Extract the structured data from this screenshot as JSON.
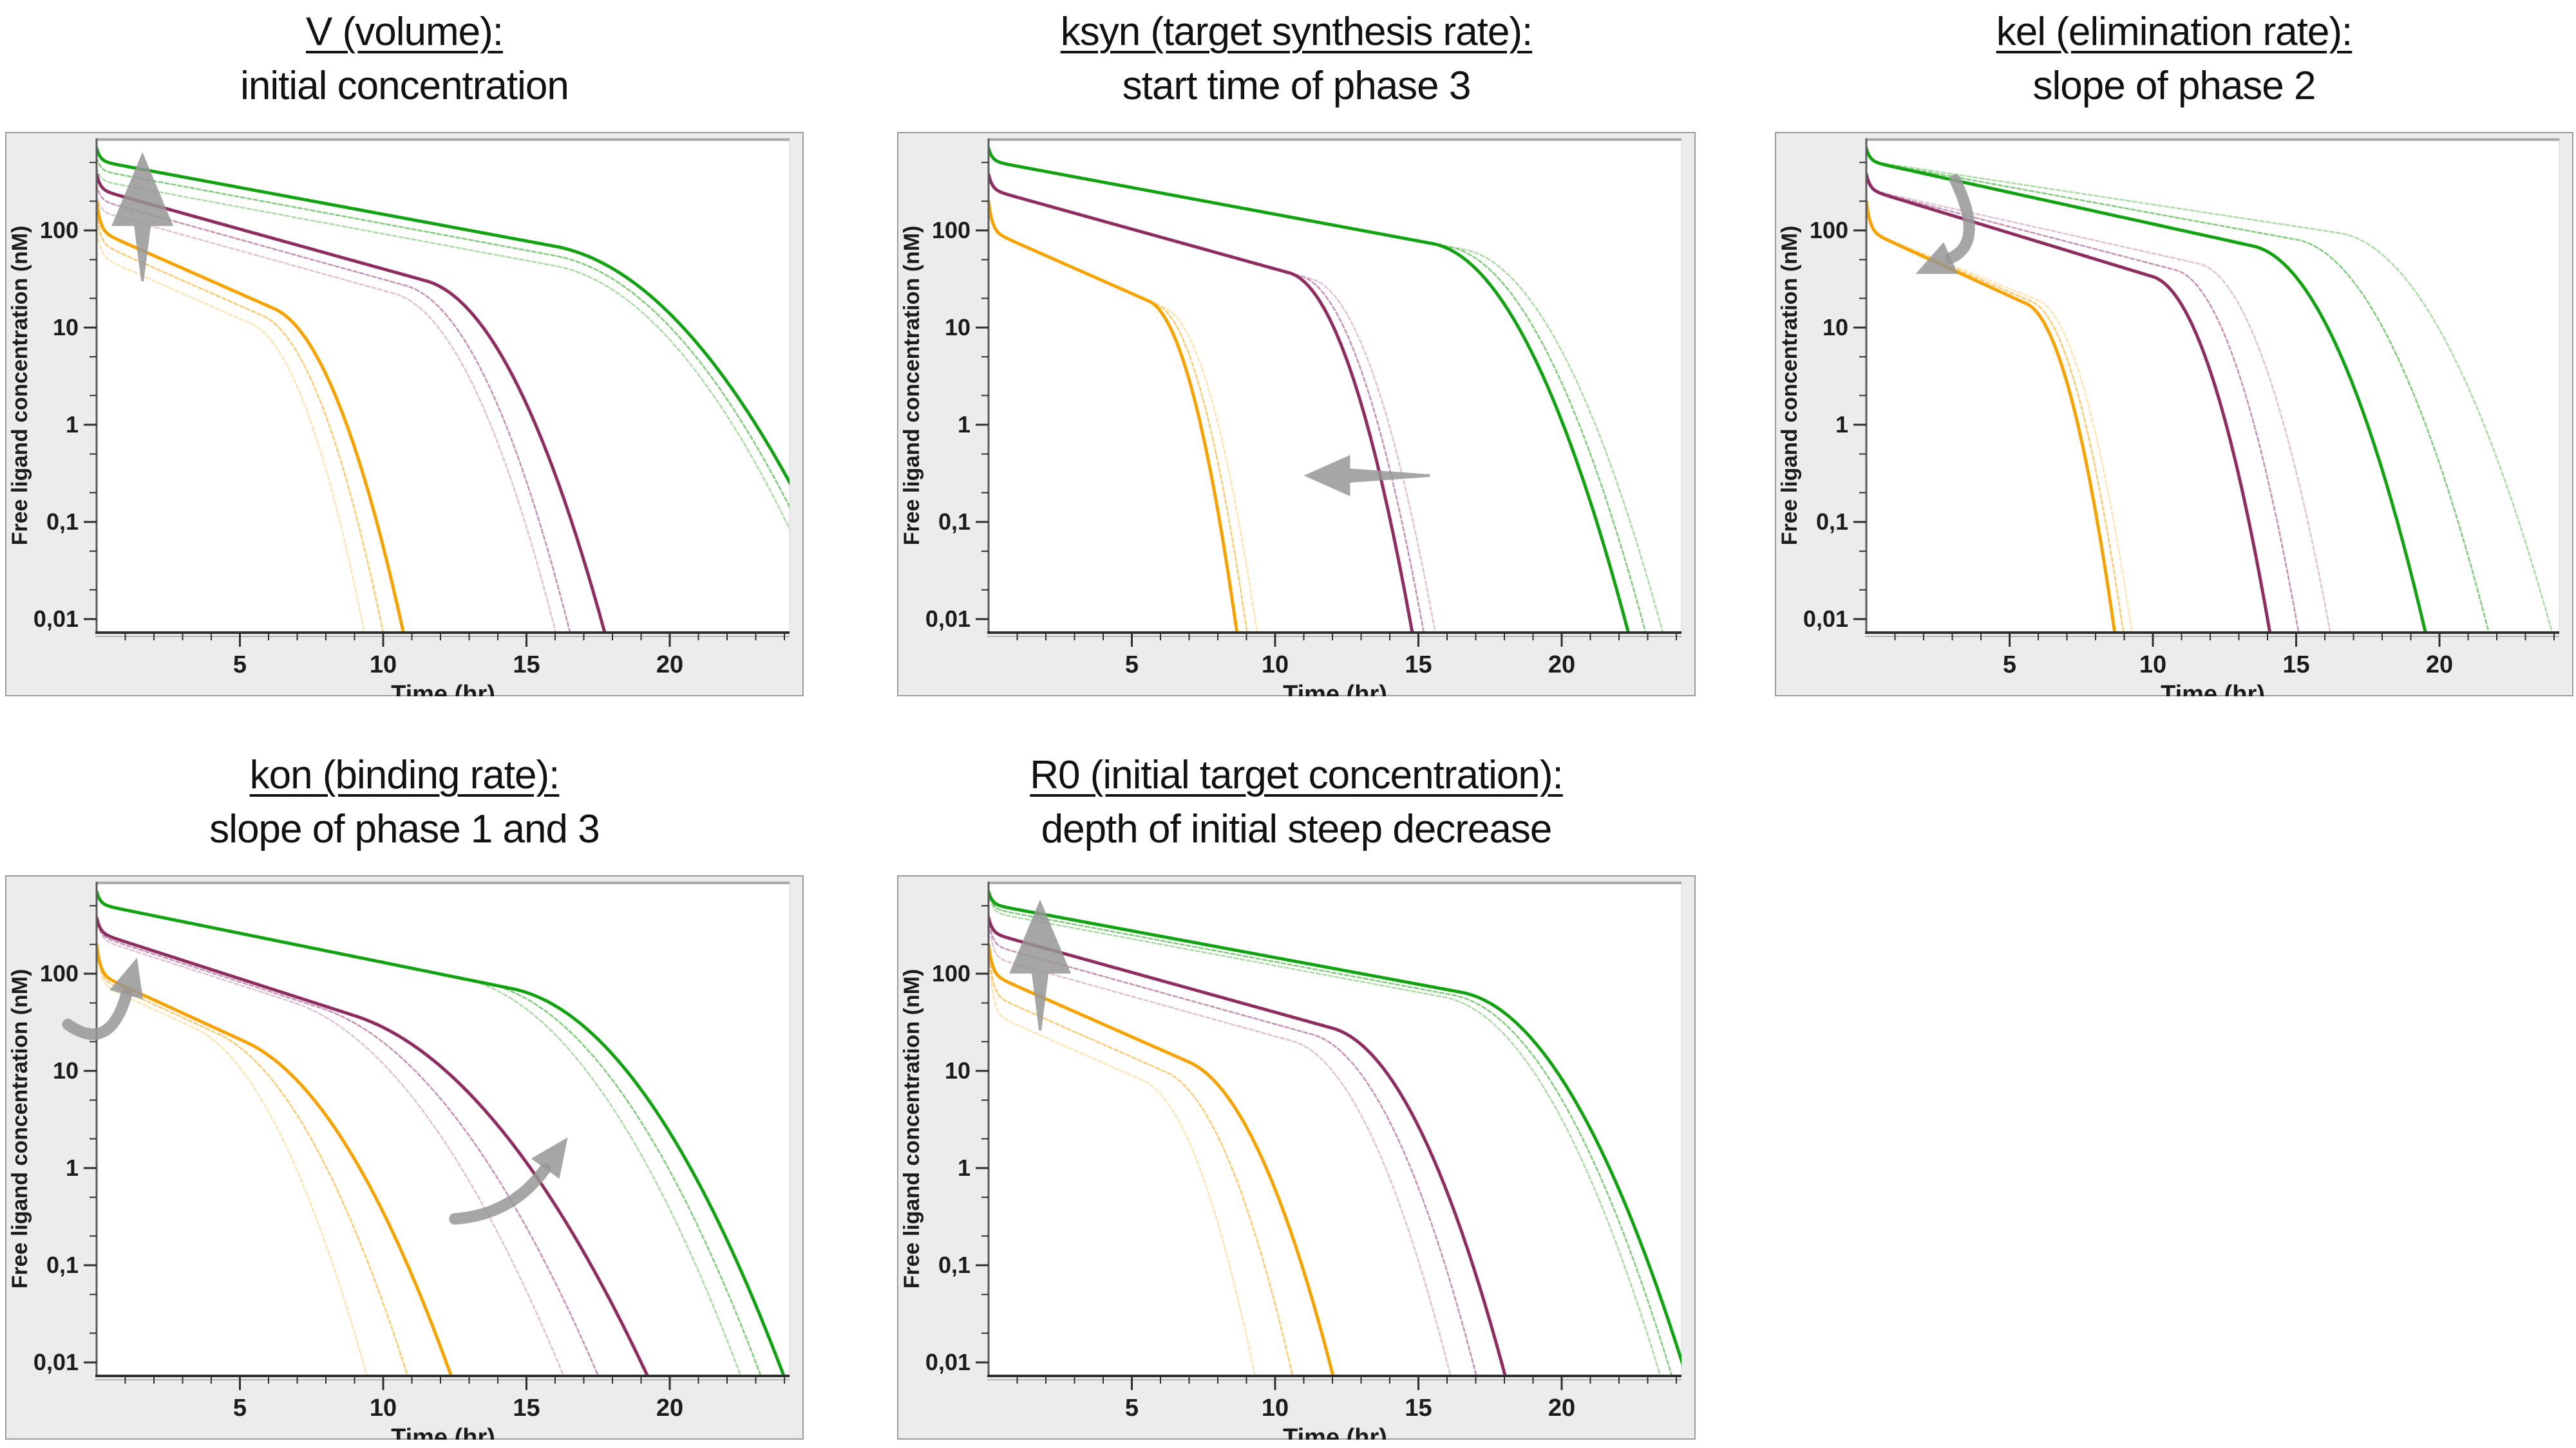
{
  "figure": {
    "description_visible_text_only": true
  },
  "colors": {
    "green": {
      "solid": "#12a212",
      "light": "#82cb7e",
      "lighter": "#abdca6"
    },
    "purple": {
      "solid": "#8e2d60",
      "light": "#c892b4",
      "lighter": "#e0c2d6"
    },
    "orange": {
      "solid": "#f6a301",
      "light": "#facb72",
      "lighter": "#fde4b4"
    },
    "arrow": "#979797",
    "axis_line": "#2e2e2e",
    "axis_wall": "#5a5a5a",
    "axis_shadow": "#b5b5b5",
    "panel_bg": "#ececec",
    "panel_border": "#9c9c9c",
    "plot_topline": "#ababab",
    "plot_border": "#d4d4d4",
    "text": "#1b1b1b"
  },
  "axes": {
    "xlabel": "Time (hr)",
    "ylabel": "Free ligand concentration (nM)",
    "x_major_ticks": [
      5,
      10,
      15,
      20
    ],
    "x_minor_step_hr": 1,
    "x_range_hr": [
      0,
      24.3
    ],
    "y_tick_labels": [
      "100",
      "10",
      "1",
      "0,1",
      "0,01"
    ],
    "y_tick_values": [
      100,
      10,
      1,
      0.1,
      0.01
    ],
    "y_scale": "log10",
    "y_top_nM": 890,
    "grid": "off",
    "legend": "none"
  },
  "chart_data": [
    {
      "type": "line",
      "id": "chart-v-volume",
      "title_line1": "V (volume):",
      "title_line2": "initial concentration",
      "xlabel": "Time (hr)",
      "ylabel": "Free ligand concentration (nM)",
      "x_ticks": [
        5,
        10,
        15,
        20
      ],
      "y_ticks": [
        "100",
        "10",
        "1",
        "0,1",
        "0,01"
      ],
      "effect_shown": "changing V shifts the whole curve up/down (initial concentration)",
      "series": [
        {
          "family": "green",
          "variant": "lighter",
          "initial_nM": 440,
          "shoulder_nM": 327,
          "phase2_slope_dec_per_hr": -0.055,
          "phase3_start_hr": 16,
          "time_to_0p01_hr": 25.6
        },
        {
          "family": "green",
          "variant": "light",
          "initial_nM": 560,
          "shoulder_nM": 416,
          "phase2_slope_dec_per_hr": -0.055,
          "phase3_start_hr": 16,
          "time_to_0p01_hr": 26.0
        },
        {
          "family": "green",
          "variant": "solid",
          "initial_nM": 700,
          "shoulder_nM": 520,
          "phase2_slope_dec_per_hr": -0.055,
          "phase3_start_hr": 16,
          "time_to_0p01_hr": 26.5
        },
        {
          "family": "purple",
          "variant": "lighter",
          "initial_nM": 228,
          "shoulder_nM": 159,
          "phase2_slope_dec_per_hr": -0.082,
          "phase3_start_hr": 10.4,
          "time_to_0p01_hr": 15.9
        },
        {
          "family": "purple",
          "variant": "light",
          "initial_nM": 296,
          "shoulder_nM": 207,
          "phase2_slope_dec_per_hr": -0.082,
          "phase3_start_hr": 10.8,
          "time_to_0p01_hr": 16.4
        },
        {
          "family": "purple",
          "variant": "solid",
          "initial_nM": 380,
          "shoulder_nM": 265,
          "phase2_slope_dec_per_hr": -0.082,
          "phase3_start_hr": 11.5,
          "time_to_0p01_hr": 17.6
        },
        {
          "family": "orange",
          "variant": "lighter",
          "initial_nM": 110,
          "shoulder_nM": 55,
          "phase2_slope_dec_per_hr": -0.13,
          "phase3_start_hr": 5.4,
          "time_to_0p01_hr": 9.25
        },
        {
          "family": "orange",
          "variant": "light",
          "initial_nM": 150,
          "shoulder_nM": 75,
          "phase2_slope_dec_per_hr": -0.13,
          "phase3_start_hr": 5.8,
          "time_to_0p01_hr": 9.9
        },
        {
          "family": "orange",
          "variant": "solid",
          "initial_nM": 200,
          "shoulder_nM": 100,
          "phase2_slope_dec_per_hr": -0.13,
          "phase3_start_hr": 6.2,
          "time_to_0p01_hr": 10.6
        }
      ],
      "arrows": [
        {
          "kind": "straight",
          "from_t_c": [
            1.6,
            30
          ],
          "to_t_c": [
            1.6,
            640
          ]
        }
      ]
    },
    {
      "type": "line",
      "id": "chart-ksyn",
      "title_line1": "ksyn (target synthesis rate):",
      "title_line2": "start time of phase 3",
      "xlabel": "Time (hr)",
      "ylabel": "Free ligand concentration (nM)",
      "x_ticks": [
        5,
        10,
        15,
        20
      ],
      "y_ticks": [
        "100",
        "10",
        "1",
        "0,1",
        "0,01"
      ],
      "effect_shown": "changing ksyn shifts the onset of the terminal phase left/right",
      "series": [
        {
          "family": "green",
          "variant": "lighter",
          "initial_nM": 700,
          "shoulder_nM": 520,
          "phase2_slope_dec_per_hr": -0.055,
          "phase3_start_hr": 16.6,
          "time_to_0p01_hr": 23.4
        },
        {
          "family": "green",
          "variant": "light",
          "initial_nM": 700,
          "shoulder_nM": 520,
          "phase2_slope_dec_per_hr": -0.055,
          "phase3_start_hr": 16.05,
          "time_to_0p01_hr": 22.8
        },
        {
          "family": "green",
          "variant": "solid",
          "initial_nM": 700,
          "shoulder_nM": 520,
          "phase2_slope_dec_per_hr": -0.055,
          "phase3_start_hr": 15.5,
          "time_to_0p01_hr": 22.2
        },
        {
          "family": "purple",
          "variant": "lighter",
          "initial_nM": 380,
          "shoulder_nM": 265,
          "phase2_slope_dec_per_hr": -0.082,
          "phase3_start_hr": 11.3,
          "time_to_0p01_hr": 15.5
        },
        {
          "family": "purple",
          "variant": "light",
          "initial_nM": 380,
          "shoulder_nM": 265,
          "phase2_slope_dec_per_hr": -0.082,
          "phase3_start_hr": 10.9,
          "time_to_0p01_hr": 15.1
        },
        {
          "family": "purple",
          "variant": "solid",
          "initial_nM": 380,
          "shoulder_nM": 265,
          "phase2_slope_dec_per_hr": -0.082,
          "phase3_start_hr": 10.5,
          "time_to_0p01_hr": 14.7
        },
        {
          "family": "orange",
          "variant": "lighter",
          "initial_nM": 200,
          "shoulder_nM": 100,
          "phase2_slope_dec_per_hr": -0.13,
          "phase3_start_hr": 6.2,
          "time_to_0p01_hr": 9.3
        },
        {
          "family": "orange",
          "variant": "light",
          "initial_nM": 200,
          "shoulder_nM": 100,
          "phase2_slope_dec_per_hr": -0.13,
          "phase3_start_hr": 5.9,
          "time_to_0p01_hr": 8.95
        },
        {
          "family": "orange",
          "variant": "solid",
          "initial_nM": 200,
          "shoulder_nM": 100,
          "phase2_slope_dec_per_hr": -0.13,
          "phase3_start_hr": 5.6,
          "time_to_0p01_hr": 8.6
        }
      ],
      "arrows": [
        {
          "kind": "straight",
          "from_t_c": [
            15.4,
            0.3
          ],
          "to_t_c": [
            11.0,
            0.3
          ]
        }
      ]
    },
    {
      "type": "line",
      "id": "chart-kel",
      "title_line1": "kel (elimination rate):",
      "title_line2": "slope of phase 2",
      "xlabel": "Time (hr)",
      "ylabel": "Free ligand concentration (nM)",
      "x_ticks": [
        5,
        10,
        15,
        20
      ],
      "y_ticks": [
        "100",
        "10",
        "1",
        "0,1",
        "0,01"
      ],
      "effect_shown": "changing kel rotates the middle log-linear phase",
      "series": [
        {
          "family": "green",
          "variant": "lighter",
          "initial_nM": 700,
          "shoulder_nM": 520,
          "phase2_slope_dec_per_hr": -0.045,
          "phase3_start_hr": 16.5,
          "time_to_0p01_hr": 23.8
        },
        {
          "family": "green",
          "variant": "light",
          "initial_nM": 700,
          "shoulder_nM": 520,
          "phase2_slope_dec_per_hr": -0.054,
          "phase3_start_hr": 15.0,
          "time_to_0p01_hr": 21.6
        },
        {
          "family": "green",
          "variant": "solid",
          "initial_nM": 700,
          "shoulder_nM": 520,
          "phase2_slope_dec_per_hr": -0.065,
          "phase3_start_hr": 13.5,
          "time_to_0p01_hr": 19.4
        },
        {
          "family": "purple",
          "variant": "lighter",
          "initial_nM": 380,
          "shoulder_nM": 265,
          "phase2_slope_dec_per_hr": -0.066,
          "phase3_start_hr": 11.6,
          "time_to_0p01_hr": 16.1
        },
        {
          "family": "purple",
          "variant": "light",
          "initial_nM": 380,
          "shoulder_nM": 265,
          "phase2_slope_dec_per_hr": -0.077,
          "phase3_start_hr": 10.8,
          "time_to_0p01_hr": 15.0
        },
        {
          "family": "purple",
          "variant": "solid",
          "initial_nM": 380,
          "shoulder_nM": 265,
          "phase2_slope_dec_per_hr": -0.09,
          "phase3_start_hr": 10.0,
          "time_to_0p01_hr": 14.0
        },
        {
          "family": "orange",
          "variant": "lighter",
          "initial_nM": 200,
          "shoulder_nM": 100,
          "phase2_slope_dec_per_hr": -0.12,
          "phase3_start_hr": 6.0,
          "time_to_0p01_hr": 9.2
        },
        {
          "family": "orange",
          "variant": "light",
          "initial_nM": 200,
          "shoulder_nM": 100,
          "phase2_slope_dec_per_hr": -0.127,
          "phase3_start_hr": 5.8,
          "time_to_0p01_hr": 8.9
        },
        {
          "family": "orange",
          "variant": "solid",
          "initial_nM": 200,
          "shoulder_nM": 100,
          "phase2_slope_dec_per_hr": -0.135,
          "phase3_start_hr": 5.6,
          "time_to_0p01_hr": 8.6
        }
      ],
      "arrows": [
        {
          "kind": "curved",
          "from_t_c": [
            3.1,
            330
          ],
          "ctrl_t_c": [
            4.15,
            75
          ],
          "to_t_c": [
            2.25,
            42
          ]
        }
      ]
    },
    {
      "type": "line",
      "id": "chart-kon",
      "title_line1": "kon (binding rate):",
      "title_line2": "slope of phase 1 and 3",
      "xlabel": "Time (hr)",
      "ylabel": "Free ligand concentration (nM)",
      "x_ticks": [
        5,
        10,
        15,
        20
      ],
      "y_ticks": [
        "100",
        "10",
        "1",
        "0,1",
        "0,01"
      ],
      "effect_shown": "changing kon rotates the initial and terminal slopes",
      "series": [
        {
          "family": "green",
          "variant": "lighter",
          "initial_nM": 700,
          "shoulder_nM": 520,
          "phase2_slope_dec_per_hr": -0.06,
          "phase3_start_hr": 12.8,
          "time_to_0p01_hr": 22.3
        },
        {
          "family": "green",
          "variant": "light",
          "initial_nM": 700,
          "shoulder_nM": 520,
          "phase2_slope_dec_per_hr": -0.06,
          "phase3_start_hr": 13.6,
          "time_to_0p01_hr": 23.0
        },
        {
          "family": "green",
          "variant": "solid",
          "initial_nM": 700,
          "shoulder_nM": 520,
          "phase2_slope_dec_per_hr": -0.06,
          "phase3_start_hr": 14.5,
          "time_to_0p01_hr": 23.8
        },
        {
          "family": "purple",
          "variant": "lighter",
          "initial_nM": 380,
          "shoulder_nM": 228,
          "phase2_slope_dec_per_hr": -0.095,
          "phase3_start_hr": 6.8,
          "time_to_0p01_hr": 16.1
        },
        {
          "family": "purple",
          "variant": "light",
          "initial_nM": 380,
          "shoulder_nM": 246,
          "phase2_slope_dec_per_hr": -0.095,
          "phase3_start_hr": 7.8,
          "time_to_0p01_hr": 17.3
        },
        {
          "family": "purple",
          "variant": "solid",
          "initial_nM": 380,
          "shoulder_nM": 265,
          "phase2_slope_dec_per_hr": -0.095,
          "phase3_start_hr": 9.0,
          "time_to_0p01_hr": 19.0
        },
        {
          "family": "orange",
          "variant": "lighter",
          "initial_nM": 200,
          "shoulder_nM": 80,
          "phase2_slope_dec_per_hr": -0.135,
          "phase3_start_hr": 3.4,
          "time_to_0p01_hr": 9.3
        },
        {
          "family": "orange",
          "variant": "light",
          "initial_nM": 200,
          "shoulder_nM": 90,
          "phase2_slope_dec_per_hr": -0.135,
          "phase3_start_hr": 4.2,
          "time_to_0p01_hr": 10.7
        },
        {
          "family": "orange",
          "variant": "solid",
          "initial_nM": 200,
          "shoulder_nM": 100,
          "phase2_slope_dec_per_hr": -0.135,
          "phase3_start_hr": 5.2,
          "time_to_0p01_hr": 12.2
        }
      ],
      "arrows": [
        {
          "kind": "curved",
          "from_t_c": [
            -1.0,
            30
          ],
          "ctrl_t_c": [
            0.45,
            15
          ],
          "to_t_c": [
            1.25,
            100
          ]
        },
        {
          "kind": "curved",
          "from_t_c": [
            12.5,
            0.3
          ],
          "ctrl_t_c": [
            14.5,
            0.33
          ],
          "to_t_c": [
            16.1,
            1.5
          ]
        }
      ]
    },
    {
      "type": "line",
      "id": "chart-r0",
      "title_line1": "R0 (initial target concentration):",
      "title_line2": "depth of initial steep decrease",
      "xlabel": "Time (hr)",
      "ylabel": "Free ligand concentration (nM)",
      "x_ticks": [
        5,
        10,
        15,
        20
      ],
      "y_ticks": [
        "100",
        "10",
        "1",
        "0,1",
        "0,01"
      ],
      "effect_shown": "changing R0 deepens the initial steep drop",
      "series": [
        {
          "family": "green",
          "variant": "lighter",
          "initial_nM": 700,
          "shoulder_nM": 430,
          "phase2_slope_dec_per_hr": -0.055,
          "phase3_start_hr": 15.9,
          "time_to_0p01_hr": 23.3
        },
        {
          "family": "green",
          "variant": "light",
          "initial_nM": 700,
          "shoulder_nM": 470,
          "phase2_slope_dec_per_hr": -0.055,
          "phase3_start_hr": 16.2,
          "time_to_0p01_hr": 23.7
        },
        {
          "family": "green",
          "variant": "solid",
          "initial_nM": 700,
          "shoulder_nM": 520,
          "phase2_slope_dec_per_hr": -0.055,
          "phase3_start_hr": 16.5,
          "time_to_0p01_hr": 24.2
        },
        {
          "family": "purple",
          "variant": "lighter",
          "initial_nM": 380,
          "shoulder_nM": 150,
          "phase2_slope_dec_per_hr": -0.082,
          "phase3_start_hr": 10.6,
          "time_to_0p01_hr": 16.0
        },
        {
          "family": "purple",
          "variant": "light",
          "initial_nM": 380,
          "shoulder_nM": 200,
          "phase2_slope_dec_per_hr": -0.082,
          "phase3_start_hr": 11.3,
          "time_to_0p01_hr": 16.9
        },
        {
          "family": "purple",
          "variant": "solid",
          "initial_nM": 380,
          "shoulder_nM": 265,
          "phase2_slope_dec_per_hr": -0.082,
          "phase3_start_hr": 12.0,
          "time_to_0p01_hr": 17.9
        },
        {
          "family": "orange",
          "variant": "lighter",
          "initial_nM": 200,
          "shoulder_nM": 40,
          "phase2_slope_dec_per_hr": -0.13,
          "phase3_start_hr": 5.4,
          "time_to_0p01_hr": 9.2
        },
        {
          "family": "orange",
          "variant": "light",
          "initial_nM": 200,
          "shoulder_nM": 62,
          "phase2_slope_dec_per_hr": -0.13,
          "phase3_start_hr": 6.2,
          "time_to_0p01_hr": 10.5
        },
        {
          "family": "orange",
          "variant": "solid",
          "initial_nM": 200,
          "shoulder_nM": 100,
          "phase2_slope_dec_per_hr": -0.13,
          "phase3_start_hr": 7.0,
          "time_to_0p01_hr": 11.9
        }
      ],
      "arrows": [
        {
          "kind": "straight",
          "from_t_c": [
            1.8,
            26
          ],
          "to_t_c": [
            1.8,
            580
          ]
        }
      ]
    }
  ]
}
